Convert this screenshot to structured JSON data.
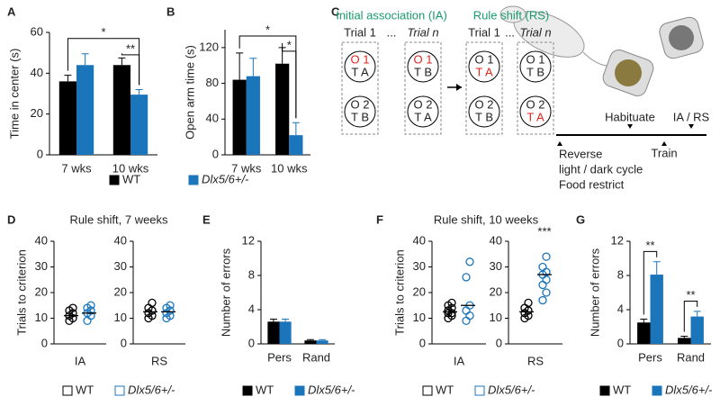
{
  "chart_data": [
    {
      "type": "bar",
      "panel": "A",
      "ylabel": "Time in center (s)",
      "categories": [
        "7 wks",
        "10 wks"
      ],
      "series": [
        {
          "name": "WT",
          "color": "#000000",
          "values": [
            36,
            44
          ],
          "errors": [
            3,
            3.5
          ]
        },
        {
          "name": "Dlx5/6+/-",
          "color": "#1b75bb",
          "values": [
            44,
            29.5
          ],
          "errors": [
            5.5,
            2.5
          ]
        }
      ],
      "ylim": [
        0,
        60
      ],
      "yticks": [
        0,
        20,
        40,
        60
      ],
      "significance": [
        "*",
        "**"
      ]
    },
    {
      "type": "bar",
      "panel": "B",
      "ylabel": "Open arm time (s)",
      "categories": [
        "7 wks",
        "10 wks"
      ],
      "series": [
        {
          "color": "#000000",
          "values": [
            84,
            102
          ],
          "errors": [
            30,
            18
          ]
        },
        {
          "color": "#1b75bb",
          "values": [
            88,
            22
          ],
          "errors": [
            20,
            14
          ]
        }
      ],
      "ylim": [
        0,
        140
      ],
      "yticks": [
        0,
        40,
        80,
        120
      ],
      "significance": [
        "*",
        "*"
      ]
    },
    {
      "type": "strip",
      "panel": "D",
      "title": "Rule shift, 7 weeks",
      "ylabel": "Trials to criterion",
      "categories": [
        "IA",
        "RS"
      ],
      "series": [
        {
          "name": "WT",
          "color": "#000000",
          "values": [
            [
              9,
              10,
              11,
              12,
              13,
              14
            ],
            [
              10,
              11,
              12,
              13,
              14,
              16
            ]
          ],
          "means": [
            11,
            12.5
          ]
        },
        {
          "name": "Dlx5/6+/-",
          "color": "#1b75bb",
          "values": [
            [
              9,
              11,
              12,
              13,
              14,
              15
            ],
            [
              10,
              11,
              12,
              13,
              14,
              15
            ]
          ],
          "means": [
            12,
            12.5
          ]
        }
      ],
      "ylim": [
        0,
        40
      ],
      "yticks": [
        0,
        10,
        20,
        30,
        40
      ]
    },
    {
      "type": "bar",
      "panel": "E",
      "ylabel": "Number of errors",
      "categories": [
        "Pers",
        "Rand"
      ],
      "series": [
        {
          "name": "WT",
          "color": "#000000",
          "values": [
            2.6,
            0.4
          ],
          "errors": [
            0.3,
            0.1
          ]
        },
        {
          "name": "Dlx5/6+/-",
          "color": "#1b75bb",
          "values": [
            2.6,
            0.4
          ],
          "errors": [
            0.3,
            0.1
          ]
        }
      ],
      "ylim": [
        0,
        12
      ],
      "yticks": [
        0,
        4,
        8,
        12
      ]
    },
    {
      "type": "strip",
      "panel": "F",
      "title": "Rule shift, 10 weeks",
      "ylabel": "Trials to criterion",
      "categories": [
        "IA",
        "RS"
      ],
      "series": [
        {
          "name": "WT",
          "color": "#000000",
          "values": [
            [
              10,
              11,
              12,
              12,
              13,
              14,
              15,
              16
            ],
            [
              10,
              11,
              12,
              13,
              14,
              16
            ]
          ],
          "means": [
            12.5,
            12.5
          ]
        },
        {
          "name": "Dlx5/6+/-",
          "color": "#1b75bb",
          "values": [
            [
              9,
              11,
              13,
              15,
              26,
              32
            ],
            [
              17,
              20,
              23,
              25,
              27,
              28,
              30,
              34
            ]
          ],
          "means": [
            15,
            27
          ]
        }
      ],
      "ylim": [
        0,
        40
      ],
      "yticks": [
        0,
        10,
        20,
        30,
        40
      ],
      "significance": [
        "***"
      ]
    },
    {
      "type": "bar",
      "panel": "G",
      "ylabel": "Number of errors",
      "categories": [
        "Pers",
        "Rand"
      ],
      "series": [
        {
          "name": "WT",
          "color": "#000000",
          "values": [
            2.5,
            0.7
          ],
          "errors": [
            0.4,
            0.2
          ]
        },
        {
          "name": "Dlx5/6+/-",
          "color": "#1b75bb",
          "values": [
            8.1,
            3.2
          ],
          "errors": [
            1.5,
            0.6
          ]
        }
      ],
      "ylim": [
        0,
        12
      ],
      "yticks": [
        0,
        4,
        8,
        12
      ],
      "significance": [
        "**",
        "**"
      ]
    }
  ],
  "diagram": {
    "panel": "C",
    "phases": [
      "Initial association (IA)",
      "Rule shift (RS)"
    ],
    "trial_labels": [
      [
        "Trial 1",
        "...",
        "Trial n"
      ],
      [
        "Trial 1",
        "...",
        "Trial n"
      ]
    ],
    "boxes": [
      [
        [
          {
            "text": "O 1",
            "red": true
          },
          {
            "text": "T A",
            "red": false
          }
        ],
        [
          {
            "text": "O 2",
            "red": false
          },
          {
            "text": "T B",
            "red": false
          }
        ]
      ],
      [
        [
          {
            "text": "O 1",
            "red": true
          },
          {
            "text": "T B",
            "red": false
          }
        ],
        [
          {
            "text": "O 2",
            "red": false
          },
          {
            "text": "T A",
            "red": false
          }
        ]
      ],
      [
        [
          {
            "text": "O 1",
            "red": false
          },
          {
            "text": "T A",
            "red": true
          }
        ],
        [
          {
            "text": "O 2",
            "red": false
          },
          {
            "text": "T B",
            "red": false
          }
        ]
      ],
      [
        [
          {
            "text": "O 1",
            "red": false
          },
          {
            "text": "T B",
            "red": false
          }
        ],
        [
          {
            "text": "O 2",
            "red": false
          },
          {
            "text": "T A",
            "red": true
          }
        ]
      ]
    ],
    "timeline": {
      "habituate": "Habituate",
      "test": "IA / RS",
      "train": "Train",
      "reverse": [
        "Reverse",
        "light / dark cycle",
        "Food restrict"
      ]
    }
  }
}
